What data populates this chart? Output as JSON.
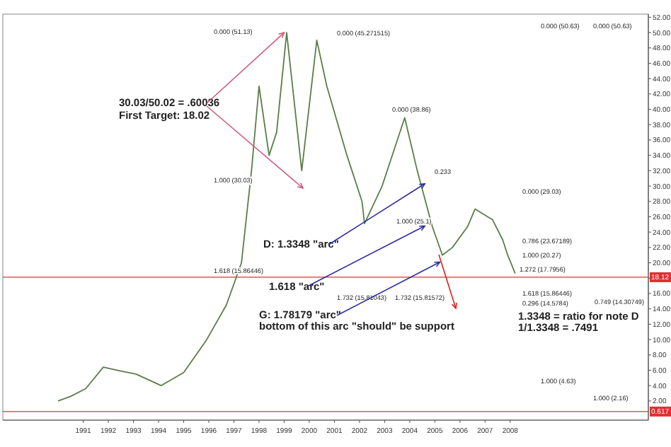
{
  "chart_data": {
    "type": "line",
    "grid": false,
    "marker": "none",
    "line_style": "solid",
    "x": [
      1990.5,
      1991.0,
      1991.6,
      1992.3,
      1993.0,
      1993.6,
      1994.6,
      1995.5,
      1996.4,
      1997.2,
      1997.8,
      1998.2,
      1998.5,
      1998.9,
      1999.2,
      1999.6,
      1999.9,
      2000.2,
      2000.8,
      2001.2,
      2002.0,
      2002.6,
      2002.7,
      2003.4,
      2004.3,
      2004.8,
      2005.4,
      2005.8,
      2006.2,
      2006.8,
      2007.1,
      2007.8,
      2008.2,
      2008.4,
      2008.7
    ],
    "series": [
      {
        "color": "#5b7d4a",
        "values": [
          2.0,
          2.6,
          3.6,
          6.4,
          5.9,
          5.5,
          4.0,
          5.7,
          9.9,
          14.5,
          20,
          32,
          43,
          34,
          37,
          50,
          41,
          32,
          49,
          43,
          34,
          28,
          25.1,
          30,
          38.9,
          32,
          24.7,
          21,
          22,
          24.7,
          27,
          25.6,
          23,
          21,
          18.6
        ]
      }
    ],
    "xlim": [
      1988.3,
      2014.0
    ],
    "xticks": [
      {
        "value": 1991.5,
        "label": "1991"
      },
      {
        "value": 1992.5,
        "label": "1992"
      },
      {
        "value": 1993.5,
        "label": "1993"
      },
      {
        "value": 1994.5,
        "label": "1994"
      },
      {
        "value": 1995.5,
        "label": "1995"
      },
      {
        "value": 1996.5,
        "label": "1996"
      },
      {
        "value": 1997.5,
        "label": "1997"
      },
      {
        "value": 1998.5,
        "label": "1998"
      },
      {
        "value": 1999.5,
        "label": "1999"
      },
      {
        "value": 2000.5,
        "label": "2000"
      },
      {
        "value": 2001.5,
        "label": "2001"
      },
      {
        "value": 2002.5,
        "label": "2002"
      },
      {
        "value": 2003.5,
        "label": "2003"
      },
      {
        "value": 2004.5,
        "label": "2004"
      },
      {
        "value": 2005.5,
        "label": "2005"
      },
      {
        "value": 2006.5,
        "label": "2006"
      },
      {
        "value": 2007.5,
        "label": "2007"
      },
      {
        "value": 2008.5,
        "label": "2008"
      }
    ],
    "ylim": [
      -0.5,
      52.4
    ],
    "yticks": [
      {
        "value": 2,
        "label": "2.00"
      },
      {
        "value": 4,
        "label": "4.00"
      },
      {
        "value": 6,
        "label": "6.00"
      },
      {
        "value": 8,
        "label": "8.00"
      },
      {
        "value": 10,
        "label": "10.00"
      },
      {
        "value": 12,
        "label": "12.00"
      },
      {
        "value": 14,
        "label": "14.00"
      },
      {
        "value": 16,
        "label": "16.00"
      },
      {
        "value": 18,
        "label": null
      },
      {
        "value": 20,
        "label": "20.00"
      },
      {
        "value": 22,
        "label": "22.00"
      },
      {
        "value": 24,
        "label": "24.00"
      },
      {
        "value": 26,
        "label": "26.00"
      },
      {
        "value": 28,
        "label": "28.00"
      },
      {
        "value": 30,
        "label": "30.00"
      },
      {
        "value": 32,
        "label": "32.00"
      },
      {
        "value": 34,
        "label": "34.00"
      },
      {
        "value": 36,
        "label": "36.00"
      },
      {
        "value": 38,
        "label": "38.00"
      },
      {
        "value": 40,
        "label": "40.00"
      },
      {
        "value": 42,
        "label": "42.00"
      },
      {
        "value": 44,
        "label": "44.00"
      },
      {
        "value": 46,
        "label": "46.00"
      },
      {
        "value": 48,
        "label": "48.00"
      },
      {
        "value": 50,
        "label": "50.00"
      },
      {
        "value": 52,
        "label": "52.00"
      }
    ],
    "ref_lines": [
      {
        "axis": "y",
        "value": 18.12,
        "label": "18.12",
        "color": "#e03030"
      },
      {
        "axis": "y",
        "value": 0.617,
        "label": "0.617",
        "color": "#e03030"
      }
    ],
    "annotations": [
      {
        "text": "30.03/50.02 = .60036",
        "x": 1999.5,
        "y": 50.0
      },
      "First Target: 18.02",
      {
        "text": "D: 1.3348 \"arc\"",
        "x": 2005.1,
        "y": 30.3
      },
      {
        "text": "1.618 \"arc\"",
        "x": 2005.1,
        "y": 24.8
      },
      {
        "text": "G: 1.78179 \"arc\"",
        "x": 2005.7,
        "y": 20.1
      },
      "bottom of this arc \"should\" be support",
      "1.3348 = ratio for note D",
      "1/1.3348 = .7491",
      "0.000 (51.13)",
      "1.000 (30.03)",
      "0.000 (45.271515)",
      "0.000 (38.86)",
      "1.000 (25.1)",
      "0.233",
      "0.000 (29.03)",
      "0.786 (23.67189)",
      "1.000 (20.27)",
      "1.272 (17.7956)",
      "1.618 (15.86446)",
      "0.296 (14.5784)",
      "0.749 (14.30749)",
      "1.732 (15.81572)",
      "1.732 (15.81043)",
      "1.618 (15.86446)",
      "0.000 (50.63)",
      "0.000 (50.63)",
      "1.000 (4.63)",
      "1.000 (2.16)"
    ]
  }
}
